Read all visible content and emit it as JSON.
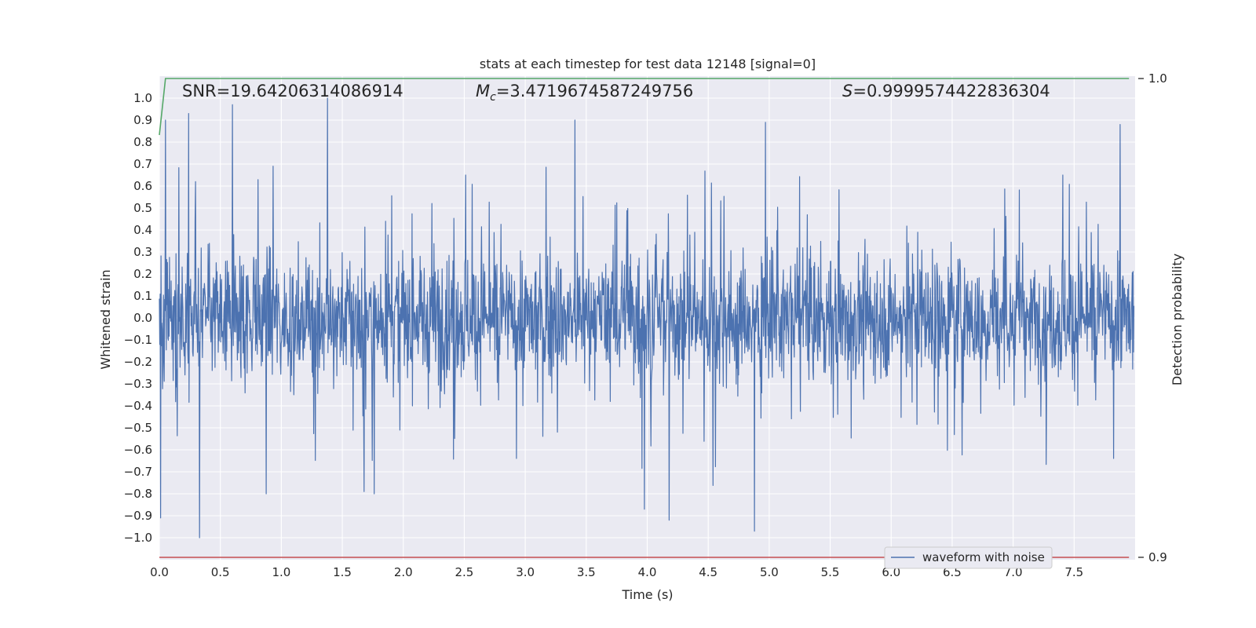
{
  "chart_data": {
    "type": "line",
    "title": "stats at each timestep for test data 12148 [signal=0]",
    "xlabel": "Time (s)",
    "ylabel": "Whitened strain",
    "y2label": "Detection probability",
    "xlim": [
      0.0,
      8.0
    ],
    "ylim": [
      -1.1,
      1.1
    ],
    "y2lim": [
      0.8995,
      1.0005
    ],
    "x_ticks": [
      "0.0",
      "0.5",
      "1.0",
      "1.5",
      "2.0",
      "2.5",
      "3.0",
      "3.5",
      "4.0",
      "4.5",
      "5.0",
      "5.5",
      "6.0",
      "6.5",
      "7.0",
      "7.5"
    ],
    "y_ticks": [
      "1.0",
      "0.9",
      "0.8",
      "0.7",
      "0.6",
      "0.5",
      "0.4",
      "0.3",
      "0.2",
      "0.1",
      "0.0",
      "−0.1",
      "−0.2",
      "−0.3",
      "−0.4",
      "−0.5",
      "−0.6",
      "−0.7",
      "−0.8",
      "−0.9",
      "−1.0"
    ],
    "y2_ticks": [
      "1.0",
      "0.9"
    ],
    "grid": true,
    "legend_position": "lower-right",
    "annotations": {
      "snr": "SNR=19.64206314086914",
      "mc_symbol": "M",
      "mc_sub": "c",
      "mc_value": "=3.4719674587249756",
      "s_symbol": "S",
      "s_value": "=0.9999574422836304"
    },
    "series": [
      {
        "name": "waveform with noise",
        "color": "#4c72b0",
        "description_of_values": "dense whitened noise, t in [0, 8) s, amplitude mostly within ±0.3 with spikes to ±1.0",
        "extremes": [
          {
            "x": 0.01,
            "y": -0.91
          },
          {
            "x": 0.05,
            "y": 0.9
          },
          {
            "x": 0.24,
            "y": 0.93
          },
          {
            "x": 0.33,
            "y": -1.0
          },
          {
            "x": 0.6,
            "y": 0.97
          },
          {
            "x": 1.38,
            "y": 1.0
          },
          {
            "x": 1.68,
            "y": -0.79
          },
          {
            "x": 3.41,
            "y": 0.9
          },
          {
            "x": 3.98,
            "y": -0.87
          },
          {
            "x": 4.18,
            "y": -0.92
          },
          {
            "x": 4.88,
            "y": -0.97
          },
          {
            "x": 4.97,
            "y": 0.89
          },
          {
            "x": 7.88,
            "y": 0.88
          }
        ]
      },
      {
        "name": "",
        "axis": "right",
        "color": "#55a868",
        "x": [
          0.0,
          0.05,
          7.95
        ],
        "y": [
          0.9882,
          1.0,
          1.0
        ]
      },
      {
        "name": "",
        "axis": "right",
        "color": "#c44e52",
        "x": [
          0.0,
          7.95
        ],
        "y": [
          0.9,
          0.9
        ]
      }
    ],
    "colors": {
      "plot_bg": "#eaeaf2",
      "grid": "#ffffff",
      "text": "#262626"
    }
  }
}
